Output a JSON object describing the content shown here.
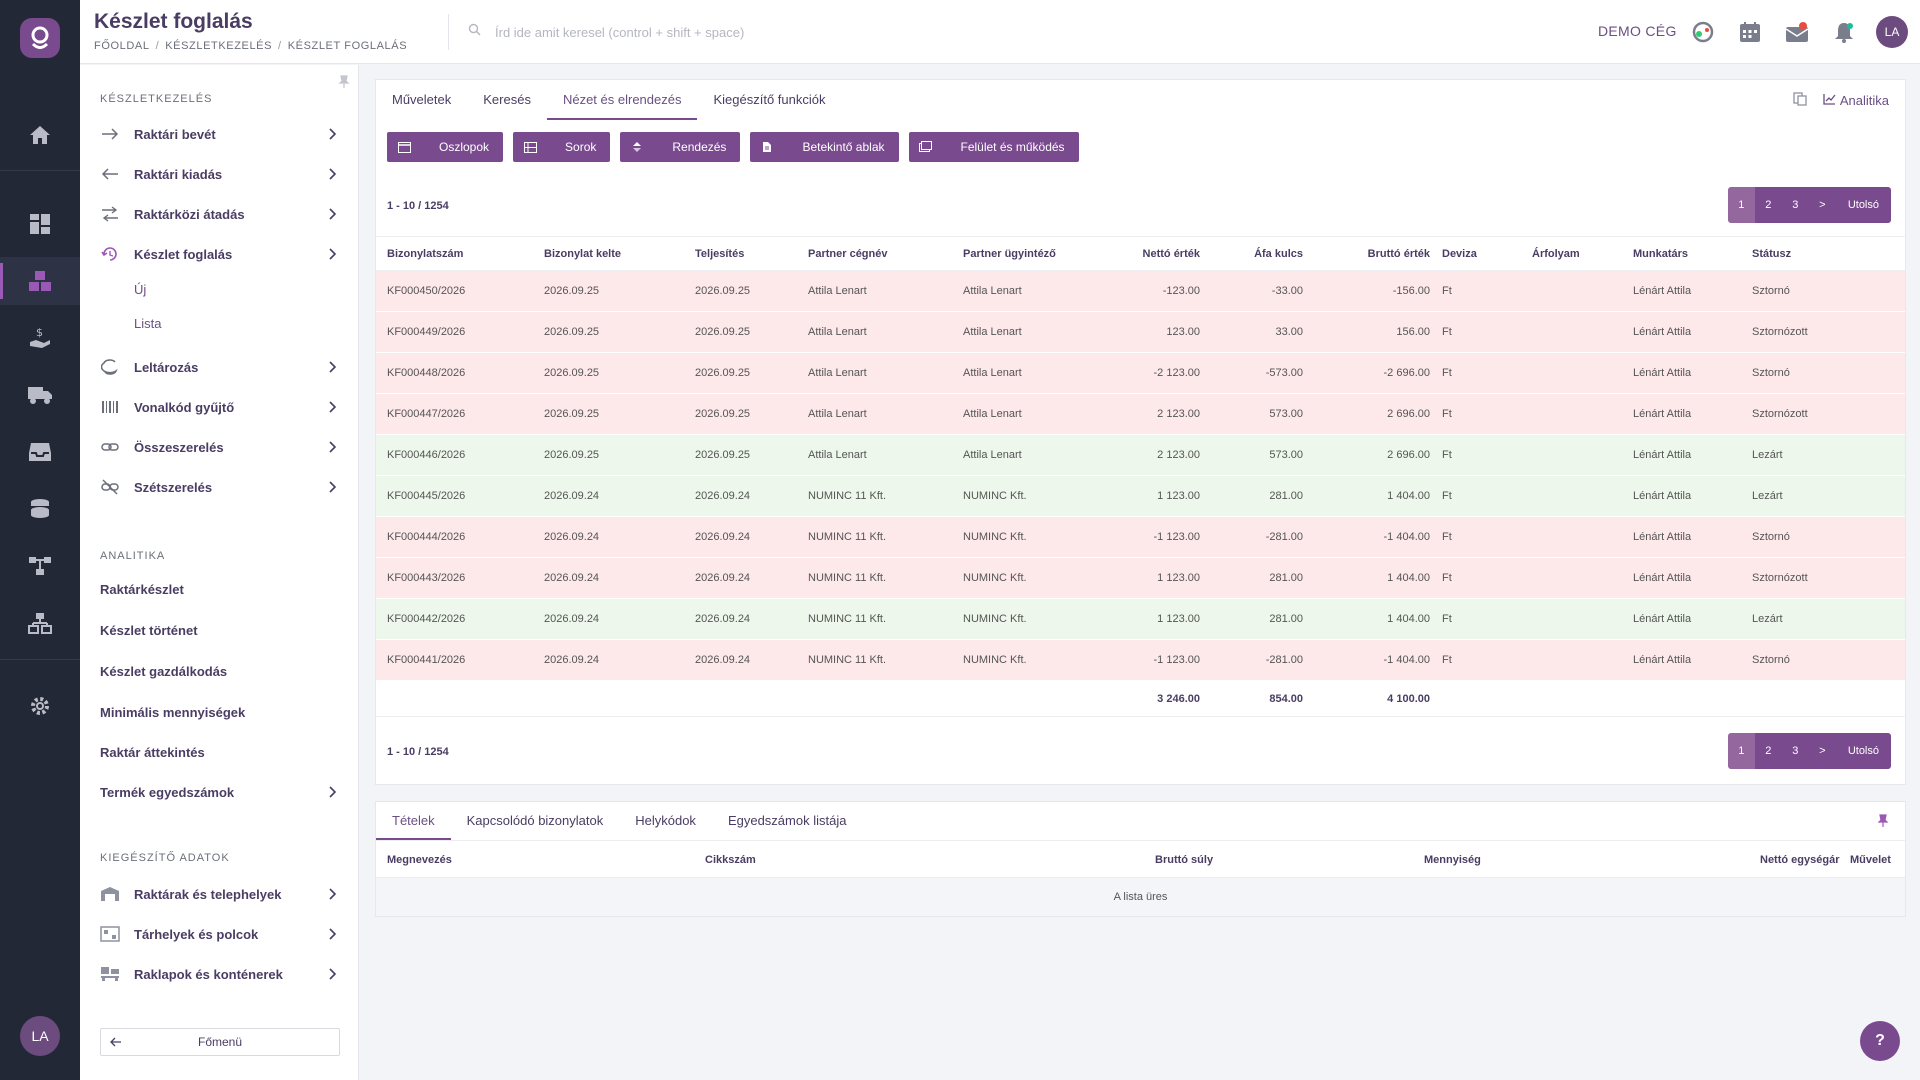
{
  "app": {
    "page_title": "Készlet foglalás",
    "breadcrumbs": [
      "FŐOLDAL",
      "KÉSZLETKEZELÉS",
      "KÉSZLET FOGLALÁS"
    ],
    "search_placeholder": "Írd ide amit keresel (control + shift + space)",
    "company": "DEMO CÉG",
    "user_initials": "LA"
  },
  "rail": {
    "icons": [
      "home-icon",
      "dashboard-icon",
      "inventory-icon",
      "finance-icon",
      "truck-icon",
      "inbox-icon",
      "coins-icon",
      "workflow-icon",
      "structure-icon",
      "settings-icon"
    ],
    "active": "inventory-icon"
  },
  "sidebar": {
    "section1": "KÉSZLETKEZELÉS",
    "items": [
      {
        "label": "Raktári bevét",
        "icon": "arrow-right-icon"
      },
      {
        "label": "Raktári kiadás",
        "icon": "arrow-left-icon"
      },
      {
        "label": "Raktárközi átadás",
        "icon": "transfer-icon"
      },
      {
        "label": "Készlet foglalás",
        "icon": "reservation-icon"
      },
      {
        "label": "Leltározás",
        "icon": "inventory-count-icon"
      },
      {
        "label": "Vonalkód gyűjtő",
        "icon": "barcode-icon"
      },
      {
        "label": "Összeszerelés",
        "icon": "assembly-icon"
      },
      {
        "label": "Szétszerelés",
        "icon": "disassembly-icon"
      }
    ],
    "sub_items": [
      "Új",
      "Lista"
    ],
    "section2": "ANALITIKA",
    "analytics": [
      "Raktárkészlet",
      "Készlet történet",
      "Készlet gazdálkodás",
      "Minimális mennyiségek",
      "Raktár áttekintés",
      "Termék egyedszámok"
    ],
    "section3": "KIEGÉSZÍTŐ ADATOK",
    "extra": [
      "Raktárak és telephelyek",
      "Tárhelyek és polcok",
      "Raklapok és konténerek"
    ],
    "back_label": "Főmenü"
  },
  "main": {
    "tabs": [
      "Műveletek",
      "Keresés",
      "Nézet és elrendezés",
      "Kiegészítő funkciók"
    ],
    "active_tab": "Nézet és elrendezés",
    "analytics_link": "Analitika",
    "toolbar": [
      "Oszlopok",
      "Sorok",
      "Rendezés",
      "Betekintő ablak",
      "Felület és működés"
    ],
    "range_text": "1 - 10 / 1254",
    "pager": [
      "1",
      "2",
      "3",
      ">",
      "Utolsó"
    ],
    "columns": [
      "Bizonylatszám",
      "Bizonylat kelte",
      "Teljesítés",
      "Partner cégnév",
      "Partner ügyintéző",
      "Nettó érték",
      "Áfa kulcs",
      "Bruttó érték",
      "Deviza",
      "Árfolyam",
      "Munkatárs",
      "Státusz"
    ],
    "rows": [
      {
        "status_color": "red",
        "cells": [
          "KF000450/2026",
          "2026.09.25",
          "2026.09.25",
          "Attila Lenart",
          "Attila Lenart",
          "-123.00",
          "-33.00",
          "-156.00",
          "Ft",
          "",
          "Lénárt Attila",
          "Sztornó"
        ]
      },
      {
        "status_color": "red",
        "cells": [
          "KF000449/2026",
          "2026.09.25",
          "2026.09.25",
          "Attila Lenart",
          "Attila Lenart",
          "123.00",
          "33.00",
          "156.00",
          "Ft",
          "",
          "Lénárt Attila",
          "Sztornózott"
        ]
      },
      {
        "status_color": "red",
        "cells": [
          "KF000448/2026",
          "2026.09.25",
          "2026.09.25",
          "Attila Lenart",
          "Attila Lenart",
          "-2 123.00",
          "-573.00",
          "-2 696.00",
          "Ft",
          "",
          "Lénárt Attila",
          "Sztornó"
        ]
      },
      {
        "status_color": "red",
        "cells": [
          "KF000447/2026",
          "2026.09.25",
          "2026.09.25",
          "Attila Lenart",
          "Attila Lenart",
          "2 123.00",
          "573.00",
          "2 696.00",
          "Ft",
          "",
          "Lénárt Attila",
          "Sztornózott"
        ]
      },
      {
        "status_color": "green",
        "cells": [
          "KF000446/2026",
          "2026.09.25",
          "2026.09.25",
          "Attila Lenart",
          "Attila Lenart",
          "2 123.00",
          "573.00",
          "2 696.00",
          "Ft",
          "",
          "Lénárt Attila",
          "Lezárt"
        ]
      },
      {
        "status_color": "green",
        "cells": [
          "KF000445/2026",
          "2026.09.24",
          "2026.09.24",
          "NUMINC 11 Kft.",
          "NUMINC Kft.",
          "1 123.00",
          "281.00",
          "1 404.00",
          "Ft",
          "",
          "Lénárt Attila",
          "Lezárt"
        ]
      },
      {
        "status_color": "red",
        "cells": [
          "KF000444/2026",
          "2026.09.24",
          "2026.09.24",
          "NUMINC 11 Kft.",
          "NUMINC Kft.",
          "-1 123.00",
          "-281.00",
          "-1 404.00",
          "Ft",
          "",
          "Lénárt Attila",
          "Sztornó"
        ]
      },
      {
        "status_color": "red",
        "cells": [
          "KF000443/2026",
          "2026.09.24",
          "2026.09.24",
          "NUMINC 11 Kft.",
          "NUMINC Kft.",
          "1 123.00",
          "281.00",
          "1 404.00",
          "Ft",
          "",
          "Lénárt Attila",
          "Sztornózott"
        ]
      },
      {
        "status_color": "green",
        "cells": [
          "KF000442/2026",
          "2026.09.24",
          "2026.09.24",
          "NUMINC 11 Kft.",
          "NUMINC Kft.",
          "1 123.00",
          "281.00",
          "1 404.00",
          "Ft",
          "",
          "Lénárt Attila",
          "Lezárt"
        ]
      },
      {
        "status_color": "red",
        "cells": [
          "KF000441/2026",
          "2026.09.24",
          "2026.09.24",
          "NUMINC 11 Kft.",
          "NUMINC Kft.",
          "-1 123.00",
          "-281.00",
          "-1 404.00",
          "Ft",
          "",
          "Lénárt Attila",
          "Sztornó"
        ]
      }
    ],
    "totals": {
      "netto": "3 246.00",
      "afa": "854.00",
      "brutto": "4 100.00"
    },
    "row_colors": {
      "red": "#fde8ea",
      "green": "#eef7ec"
    }
  },
  "detail": {
    "tabs": [
      "Tételek",
      "Kapcsolódó bizonylatok",
      "Helykódok",
      "Egyedszámok listája"
    ],
    "columns": [
      "Megnevezés",
      "Cikkszám",
      "Bruttó súly",
      "Mennyiség",
      "Nettó egységár",
      "Művelet"
    ],
    "empty_text": "A lista üres"
  },
  "colors": {
    "accent": "#7a4a8f",
    "rail": "#232837",
    "title": "#4a3d63"
  },
  "help_label": "?"
}
